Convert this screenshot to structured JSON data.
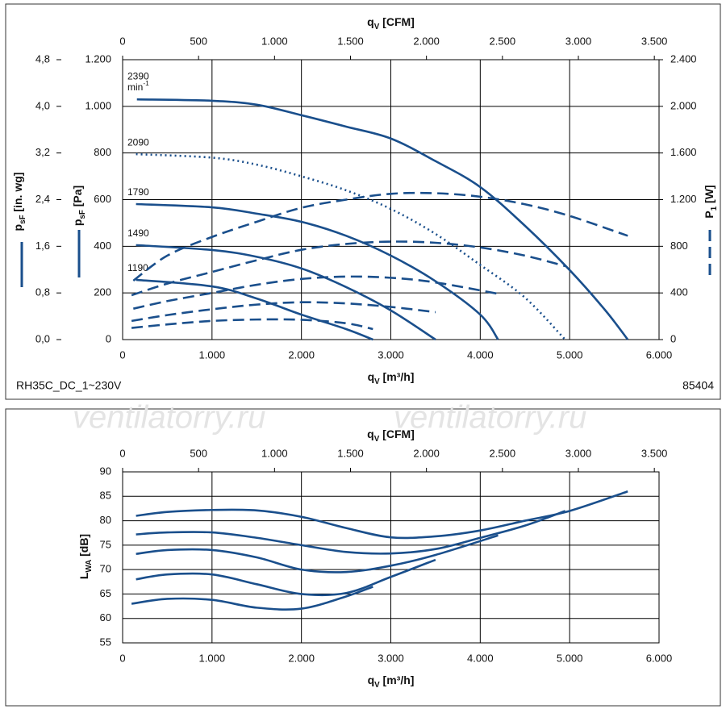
{
  "watermark": [
    "ventilatorry.ru",
    "ventilatorry.ru"
  ],
  "footer": {
    "left": "RH35C_DC_1~230V",
    "right": "85404"
  },
  "chart_data": [
    {
      "type": "line",
      "x_label": {
        "text": "q",
        "sub": "V",
        "after": " [m³/h]"
      },
      "x2_label": {
        "text": "q",
        "sub": "V",
        "after": " [CFM]"
      },
      "y_label": {
        "text": "p",
        "sub": "sF",
        "after": " [Pa]"
      },
      "y2_label": {
        "text": "P",
        "sub": "1",
        "after": " [W]"
      },
      "y3_label": {
        "text": "p",
        "sub": "sF",
        "after": " [in. wg]"
      },
      "xlim": [
        0,
        6000
      ],
      "xticks": [
        0,
        {
          "value": 1000,
          "label": "1.000"
        },
        {
          "value": 2000,
          "label": "2.000"
        },
        {
          "value": 3000,
          "label": "3.000"
        },
        {
          "value": 4000,
          "label": "4.000"
        },
        {
          "value": 5000,
          "label": "5.000"
        },
        {
          "value": 6000,
          "label": "6.000"
        }
      ],
      "x2lim": [
        0,
        3531
      ],
      "x2ticks": [
        0,
        500,
        {
          "value": 1000,
          "label": "1.000"
        },
        {
          "value": 1500,
          "label": "1.500"
        },
        {
          "value": 2000,
          "label": "2.000"
        },
        {
          "value": 2500,
          "label": "2.500"
        },
        {
          "value": 3000,
          "label": "3.000"
        },
        {
          "value": 3500,
          "label": "3.500"
        }
      ],
      "ylim": [
        0,
        1200
      ],
      "yticks": [
        0,
        200,
        400,
        600,
        800,
        {
          "value": 1000,
          "label": "1.000"
        },
        {
          "value": 1200,
          "label": "1.200"
        }
      ],
      "y2lim": [
        0,
        2400
      ],
      "y2ticks": [
        0,
        400,
        800,
        {
          "value": 1200,
          "label": "1.200"
        },
        {
          "value": 1600,
          "label": "1.600"
        },
        {
          "value": 2000,
          "label": "2.000"
        },
        {
          "value": 2400,
          "label": "2.400"
        }
      ],
      "y3lim": [
        0,
        4.8
      ],
      "y3ticks": [
        {
          "value": 0,
          "label": "0,0"
        },
        {
          "value": 0.8,
          "label": "0,8"
        },
        {
          "value": 1.6,
          "label": "1,6"
        },
        {
          "value": 2.4,
          "label": "2,4"
        },
        {
          "value": 3.2,
          "label": "3,2"
        },
        {
          "value": 4,
          "label": "4,0"
        },
        {
          "value": 4.8,
          "label": "4,8"
        }
      ],
      "grid": true,
      "annotations": [
        {
          "text": "min",
          "sup": "-1"
        }
      ],
      "series": [
        {
          "name": "2390",
          "color": "#1a4f8c",
          "style": "solid",
          "x": [
            160,
            1000,
            1500,
            2000,
            2500,
            3000,
            3500,
            4000,
            4500,
            5000,
            5400,
            5650
          ],
          "values": [
            1030,
            1024,
            1007,
            962,
            913,
            862,
            765,
            654,
            488,
            298,
            125,
            0
          ]
        },
        {
          "name": "2090",
          "color": "#1a4f8c",
          "style": "dotted",
          "x": [
            150,
            1000,
            1500,
            2000,
            2500,
            3000,
            3500,
            4000,
            4500,
            4950
          ],
          "values": [
            795,
            780,
            750,
            700,
            640,
            560,
            453,
            320,
            180,
            0
          ]
        },
        {
          "name": "1790",
          "color": "#1a4f8c",
          "style": "solid",
          "x": [
            150,
            1000,
            1500,
            2000,
            2500,
            3000,
            3500,
            4000,
            4200
          ],
          "values": [
            581,
            567,
            540,
            505,
            445,
            360,
            250,
            107,
            0
          ]
        },
        {
          "name": "1490",
          "color": "#1a4f8c",
          "style": "solid",
          "x": [
            150,
            1000,
            1500,
            2000,
            2500,
            3000,
            3500
          ],
          "values": [
            405,
            384,
            355,
            305,
            225,
            125,
            0
          ]
        },
        {
          "name": "1190",
          "color": "#1a4f8c",
          "style": "solid",
          "x": [
            150,
            1000,
            1500,
            2000,
            2500,
            2800
          ],
          "values": [
            256,
            228,
            176,
            107,
            45,
            0
          ]
        },
        {
          "color": "#1a4f8c",
          "style": "dashed",
          "axis": "y2",
          "x": [
            120,
            500,
            1000,
            1500,
            2000,
            2500,
            3000,
            3500,
            4000,
            4500,
            5000,
            5650
          ],
          "values": [
            505,
            720,
            880,
            1010,
            1130,
            1200,
            1250,
            1255,
            1225,
            1160,
            1060,
            890
          ]
        },
        {
          "color": "#1a4f8c",
          "style": "dashed",
          "axis": "y2",
          "x": [
            100,
            500,
            1000,
            1500,
            2000,
            2500,
            3000,
            3500,
            4000,
            4500,
            4950
          ],
          "values": [
            380,
            480,
            580,
            680,
            770,
            820,
            840,
            830,
            790,
            720,
            630
          ]
        },
        {
          "color": "#1a4f8c",
          "style": "dashed",
          "axis": "y2",
          "x": [
            120,
            500,
            1000,
            1500,
            2000,
            2500,
            3000,
            3500,
            4220
          ],
          "values": [
            265,
            330,
            400,
            470,
            520,
            540,
            530,
            490,
            390
          ]
        },
        {
          "color": "#1a4f8c",
          "style": "dashed",
          "axis": "y2",
          "x": [
            100,
            500,
            1000,
            1500,
            2000,
            2500,
            3000,
            3500
          ],
          "values": [
            160,
            210,
            260,
            300,
            320,
            310,
            280,
            235
          ]
        },
        {
          "color": "#1a4f8c",
          "style": "dashed",
          "axis": "y2",
          "x": [
            100,
            500,
            1000,
            1500,
            2000,
            2500,
            2800
          ],
          "values": [
            100,
            130,
            160,
            172,
            170,
            140,
            90
          ]
        }
      ]
    },
    {
      "type": "line",
      "x_label": {
        "text": "q",
        "sub": "V",
        "after": " [m³/h]"
      },
      "x2_label": {
        "text": "q",
        "sub": "V",
        "after": " [CFM]"
      },
      "y_label": {
        "text": "L",
        "sub": "WA",
        "after": " [dB]"
      },
      "xlim": [
        0,
        6000
      ],
      "xticks": [
        0,
        {
          "value": 1000,
          "label": "1.000"
        },
        {
          "value": 2000,
          "label": "2.000"
        },
        {
          "value": 3000,
          "label": "3.000"
        },
        {
          "value": 4000,
          "label": "4.000"
        },
        {
          "value": 5000,
          "label": "5.000"
        },
        {
          "value": 6000,
          "label": "6.000"
        }
      ],
      "x2lim": [
        0,
        3531
      ],
      "x2ticks": [
        0,
        500,
        {
          "value": 1000,
          "label": "1.000"
        },
        {
          "value": 1500,
          "label": "1.500"
        },
        {
          "value": 2000,
          "label": "2.000"
        },
        {
          "value": 2500,
          "label": "2.500"
        },
        {
          "value": 3000,
          "label": "3.000"
        },
        {
          "value": 3500,
          "label": "3.500"
        }
      ],
      "ylim": [
        55,
        90
      ],
      "yticks": [
        55,
        60,
        65,
        70,
        75,
        80,
        85,
        90
      ],
      "grid": true,
      "series": [
        {
          "color": "#1a4f8c",
          "style": "solid",
          "x": [
            150,
            500,
            1000,
            1500,
            2000,
            2500,
            3000,
            3500,
            4000,
            4500,
            5000,
            5650
          ],
          "values": [
            81,
            81.8,
            82.2,
            82.1,
            80.8,
            78.5,
            76.6,
            76.8,
            78,
            80,
            82,
            86
          ]
        },
        {
          "color": "#1a4f8c",
          "style": "solid",
          "x": [
            150,
            500,
            1000,
            1500,
            2000,
            2500,
            3000,
            3500,
            4000,
            4500,
            4950
          ],
          "values": [
            77.2,
            77.6,
            77.6,
            76.5,
            75,
            73.6,
            73.3,
            74.2,
            76.5,
            79,
            82
          ]
        },
        {
          "color": "#1a4f8c",
          "style": "solid",
          "x": [
            150,
            500,
            1000,
            1500,
            2000,
            2500,
            3000,
            3500,
            4200
          ],
          "values": [
            73.2,
            74,
            74,
            72.5,
            70,
            69.5,
            70.8,
            73,
            77
          ]
        },
        {
          "color": "#1a4f8c",
          "style": "solid",
          "x": [
            150,
            500,
            1000,
            1500,
            2000,
            2500,
            3000,
            3500
          ],
          "values": [
            68,
            69,
            69,
            67,
            65,
            65.2,
            68.5,
            72
          ]
        },
        {
          "color": "#1a4f8c",
          "style": "solid",
          "x": [
            100,
            500,
            1000,
            1500,
            2000,
            2500,
            2800
          ],
          "values": [
            63,
            64,
            63.8,
            62.2,
            62,
            64.5,
            66.5
          ]
        }
      ]
    }
  ]
}
